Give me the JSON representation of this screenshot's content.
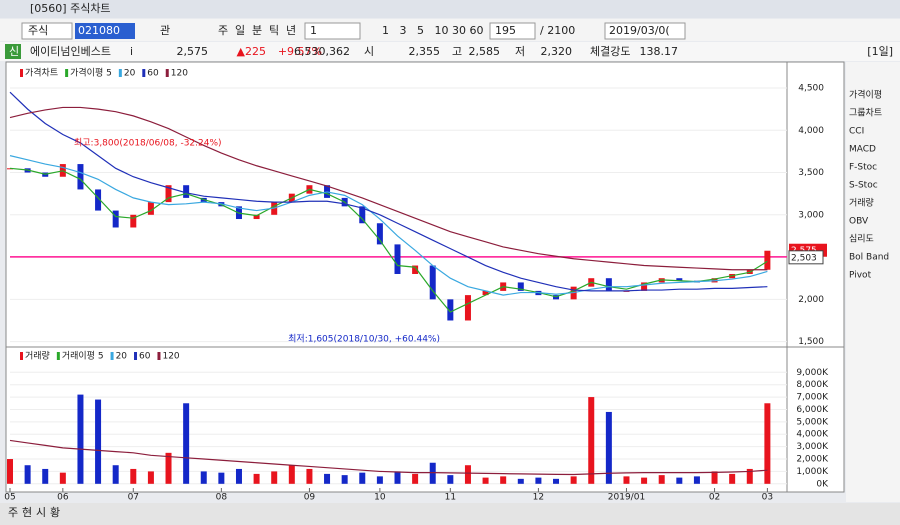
{
  "ui": {
    "window_title": "[0560] 주식차트",
    "toolbar": {
      "market": "주식",
      "code": "021080",
      "watch": "관",
      "periods": [
        "주",
        "일",
        "분",
        "틱",
        "년"
      ],
      "interval": "1",
      "intervals": [
        "1",
        "3",
        "5",
        "10",
        "30",
        "60"
      ],
      "count": "195",
      "total": "/ 2100",
      "date": "2019/03/0("
    },
    "info": {
      "badge": "신",
      "name": "에이티넘인베스트",
      "info_button": "i",
      "price": "2,575",
      "change": "▲225",
      "change_rate": "+9.57%",
      "volume": "6,530,362",
      "open_label": "시",
      "open": "2,355",
      "high_label": "고",
      "high": "2,585",
      "low_label": "저",
      "low": "2,320",
      "strength_label": "체결강도",
      "strength": "138.17",
      "period": "[1일]"
    },
    "sidebar": [
      "가격이평",
      "그룹차트",
      "CCI",
      "MACD",
      "F-Stoc",
      "S-Stoc",
      "거래량",
      "OBV",
      "심리도",
      "Bol Band",
      "Pivot"
    ],
    "bottom_tabs": [
      "주",
      "현",
      "시",
      "황"
    ]
  },
  "chart_data": {
    "type": "line",
    "categories": [
      "05",
      null,
      null,
      "06",
      null,
      null,
      null,
      "07",
      null,
      null,
      null,
      null,
      "08",
      null,
      null,
      null,
      null,
      "09",
      null,
      null,
      null,
      "10",
      null,
      null,
      null,
      "11",
      null,
      null,
      null,
      null,
      "12",
      null,
      null,
      null,
      null,
      "2019/01",
      null,
      null,
      null,
      null,
      "02",
      null,
      null,
      "03",
      null
    ],
    "price": {
      "ylim": [
        1460,
        4760
      ],
      "yticks": [
        {
          "value": 1500,
          "label": "1,500"
        },
        {
          "value": 2000,
          "label": "2,000"
        },
        {
          "value": 2500,
          "label": "2,500"
        },
        {
          "value": 3000,
          "label": "3,000"
        },
        {
          "value": 3500,
          "label": "3,500"
        },
        {
          "value": 4000,
          "label": "4,000"
        },
        {
          "value": 4500,
          "label": "4,500"
        }
      ],
      "up_color": "#e8141e",
      "down_color": "#1428c8",
      "series": [
        {
          "name": "가격차트",
          "color": "#e8141e",
          "values": [
            3550,
            3500,
            3450,
            3600,
            3300,
            3050,
            2850,
            3000,
            3150,
            3350,
            3200,
            3150,
            3100,
            2950,
            3000,
            3150,
            3250,
            3350,
            3200,
            3100,
            2900,
            2650,
            2300,
            2400,
            2000,
            1750,
            2050,
            2100,
            2200,
            2100,
            2050,
            2000,
            2150,
            2250,
            2100,
            2100,
            2200,
            2250,
            2220,
            2200,
            2250,
            2300,
            2350,
            2575
          ]
        },
        {
          "name": "가격이평 5",
          "color": "#2aa82a",
          "values": [
            3550,
            3530,
            3480,
            3520,
            3420,
            3200,
            2980,
            2960,
            3050,
            3200,
            3250,
            3180,
            3120,
            3020,
            2990,
            3100,
            3200,
            3300,
            3250,
            3150,
            2950,
            2700,
            2400,
            2380,
            2100,
            1850,
            1950,
            2050,
            2150,
            2120,
            2080,
            2030,
            2100,
            2200,
            2150,
            2120,
            2180,
            2230,
            2220,
            2210,
            2240,
            2280,
            2320,
            2450
          ]
        },
        {
          "name": "20",
          "color": "#3aa8e0",
          "values": [
            3700,
            3650,
            3600,
            3560,
            3500,
            3420,
            3300,
            3200,
            3150,
            3120,
            3130,
            3150,
            3130,
            3080,
            3050,
            3080,
            3150,
            3230,
            3270,
            3230,
            3120,
            2950,
            2750,
            2580,
            2400,
            2250,
            2150,
            2100,
            2050,
            2080,
            2080,
            2060,
            2080,
            2120,
            2150,
            2150,
            2170,
            2190,
            2200,
            2210,
            2220,
            2240,
            2270,
            2330
          ]
        },
        {
          "name": "60",
          "color": "#2030b8",
          "values": [
            4450,
            4250,
            4080,
            3950,
            3850,
            3700,
            3550,
            3450,
            3380,
            3320,
            3260,
            3220,
            3200,
            3180,
            3160,
            3150,
            3150,
            3160,
            3160,
            3130,
            3080,
            3000,
            2900,
            2800,
            2700,
            2600,
            2500,
            2400,
            2320,
            2250,
            2200,
            2150,
            2110,
            2100,
            2100,
            2100,
            2110,
            2110,
            2120,
            2120,
            2130,
            2130,
            2140,
            2150
          ]
        },
        {
          "name": "120",
          "color": "#8c1e3c",
          "values": [
            4150,
            4200,
            4240,
            4270,
            4270,
            4250,
            4220,
            4170,
            4100,
            4020,
            3920,
            3820,
            3730,
            3650,
            3580,
            3520,
            3460,
            3400,
            3340,
            3270,
            3200,
            3120,
            3040,
            2960,
            2880,
            2800,
            2740,
            2680,
            2620,
            2580,
            2540,
            2510,
            2480,
            2460,
            2440,
            2420,
            2400,
            2390,
            2380,
            2370,
            2360,
            2350,
            2350,
            2350
          ]
        }
      ],
      "hline": {
        "value": 2503,
        "label": "2,503",
        "color": "#ff1493"
      },
      "last": {
        "value": 2575,
        "label": "2,575"
      },
      "annotations": {
        "high": "최고:3,800(2018/06/08, -32.24%)",
        "low": "최저:1,605(2018/10/30, +60.44%)"
      }
    },
    "volume": {
      "ylim": [
        -500,
        10800
      ],
      "yticks": [
        {
          "value": 0,
          "label": "0K"
        },
        {
          "value": 1000,
          "label": "1,000K"
        },
        {
          "value": 2000,
          "label": "2,000K"
        },
        {
          "value": 3000,
          "label": "3,000K"
        },
        {
          "value": 4000,
          "label": "4,000K"
        },
        {
          "value": 5000,
          "label": "5,000K"
        },
        {
          "value": 6000,
          "label": "6,000K"
        },
        {
          "value": 7000,
          "label": "7,000K"
        },
        {
          "value": 8000,
          "label": "8,000K"
        },
        {
          "value": 9000,
          "label": "9,000K"
        }
      ],
      "legend": [
        "거래량",
        "거래이평 5",
        "20",
        "60",
        "120"
      ],
      "values": [
        2000,
        1500,
        1200,
        900,
        7200,
        6800,
        1500,
        1200,
        1000,
        2500,
        6500,
        1000,
        900,
        1200,
        800,
        1000,
        1500,
        1200,
        800,
        700,
        900,
        600,
        1000,
        800,
        1700,
        700,
        1500,
        500,
        600,
        400,
        500,
        400,
        600,
        7000,
        5800,
        600,
        500,
        700,
        500,
        600,
        1000,
        800,
        1200,
        6500
      ],
      "ma": {
        "color": "#8c1e3c",
        "values": [
          3500,
          3300,
          3100,
          2900,
          2800,
          2700,
          2600,
          2500,
          2300,
          2200,
          2100,
          2000,
          1900,
          1800,
          1700,
          1600,
          1500,
          1400,
          1300,
          1200,
          1100,
          1000,
          950,
          900,
          900,
          880,
          860,
          840,
          820,
          800,
          780,
          760,
          750,
          800,
          850,
          880,
          900,
          900,
          900,
          900,
          920,
          950,
          1000,
          1100
        ]
      }
    }
  }
}
